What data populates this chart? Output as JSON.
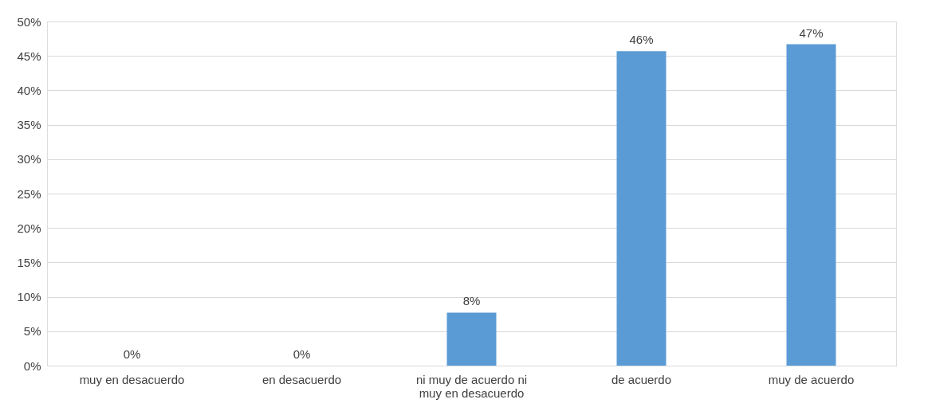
{
  "chart_data": {
    "type": "bar",
    "categories": [
      "muy en desacuerdo",
      "en desacuerdo",
      "ni muy de acuerdo ni muy en desacuerdo",
      "de acuerdo",
      "muy de acuerdo"
    ],
    "values": [
      0,
      0,
      7.7,
      45.7,
      46.7
    ],
    "value_labels": [
      "0%",
      "0%",
      "8%",
      "46%",
      "47%"
    ],
    "color": "#5b9bd5",
    "ylim": [
      0,
      50
    ],
    "yticks": [
      {
        "value": 0,
        "label": "0%"
      },
      {
        "value": 5,
        "label": "5%"
      },
      {
        "value": 10,
        "label": "10%"
      },
      {
        "value": 15,
        "label": "15%"
      },
      {
        "value": 20,
        "label": "20%"
      },
      {
        "value": 25,
        "label": "25%"
      },
      {
        "value": 30,
        "label": "30%"
      },
      {
        "value": 35,
        "label": "35%"
      },
      {
        "value": 40,
        "label": "40%"
      },
      {
        "value": 45,
        "label": "45%"
      },
      {
        "value": 50,
        "label": "50%"
      }
    ],
    "grid": "y"
  }
}
